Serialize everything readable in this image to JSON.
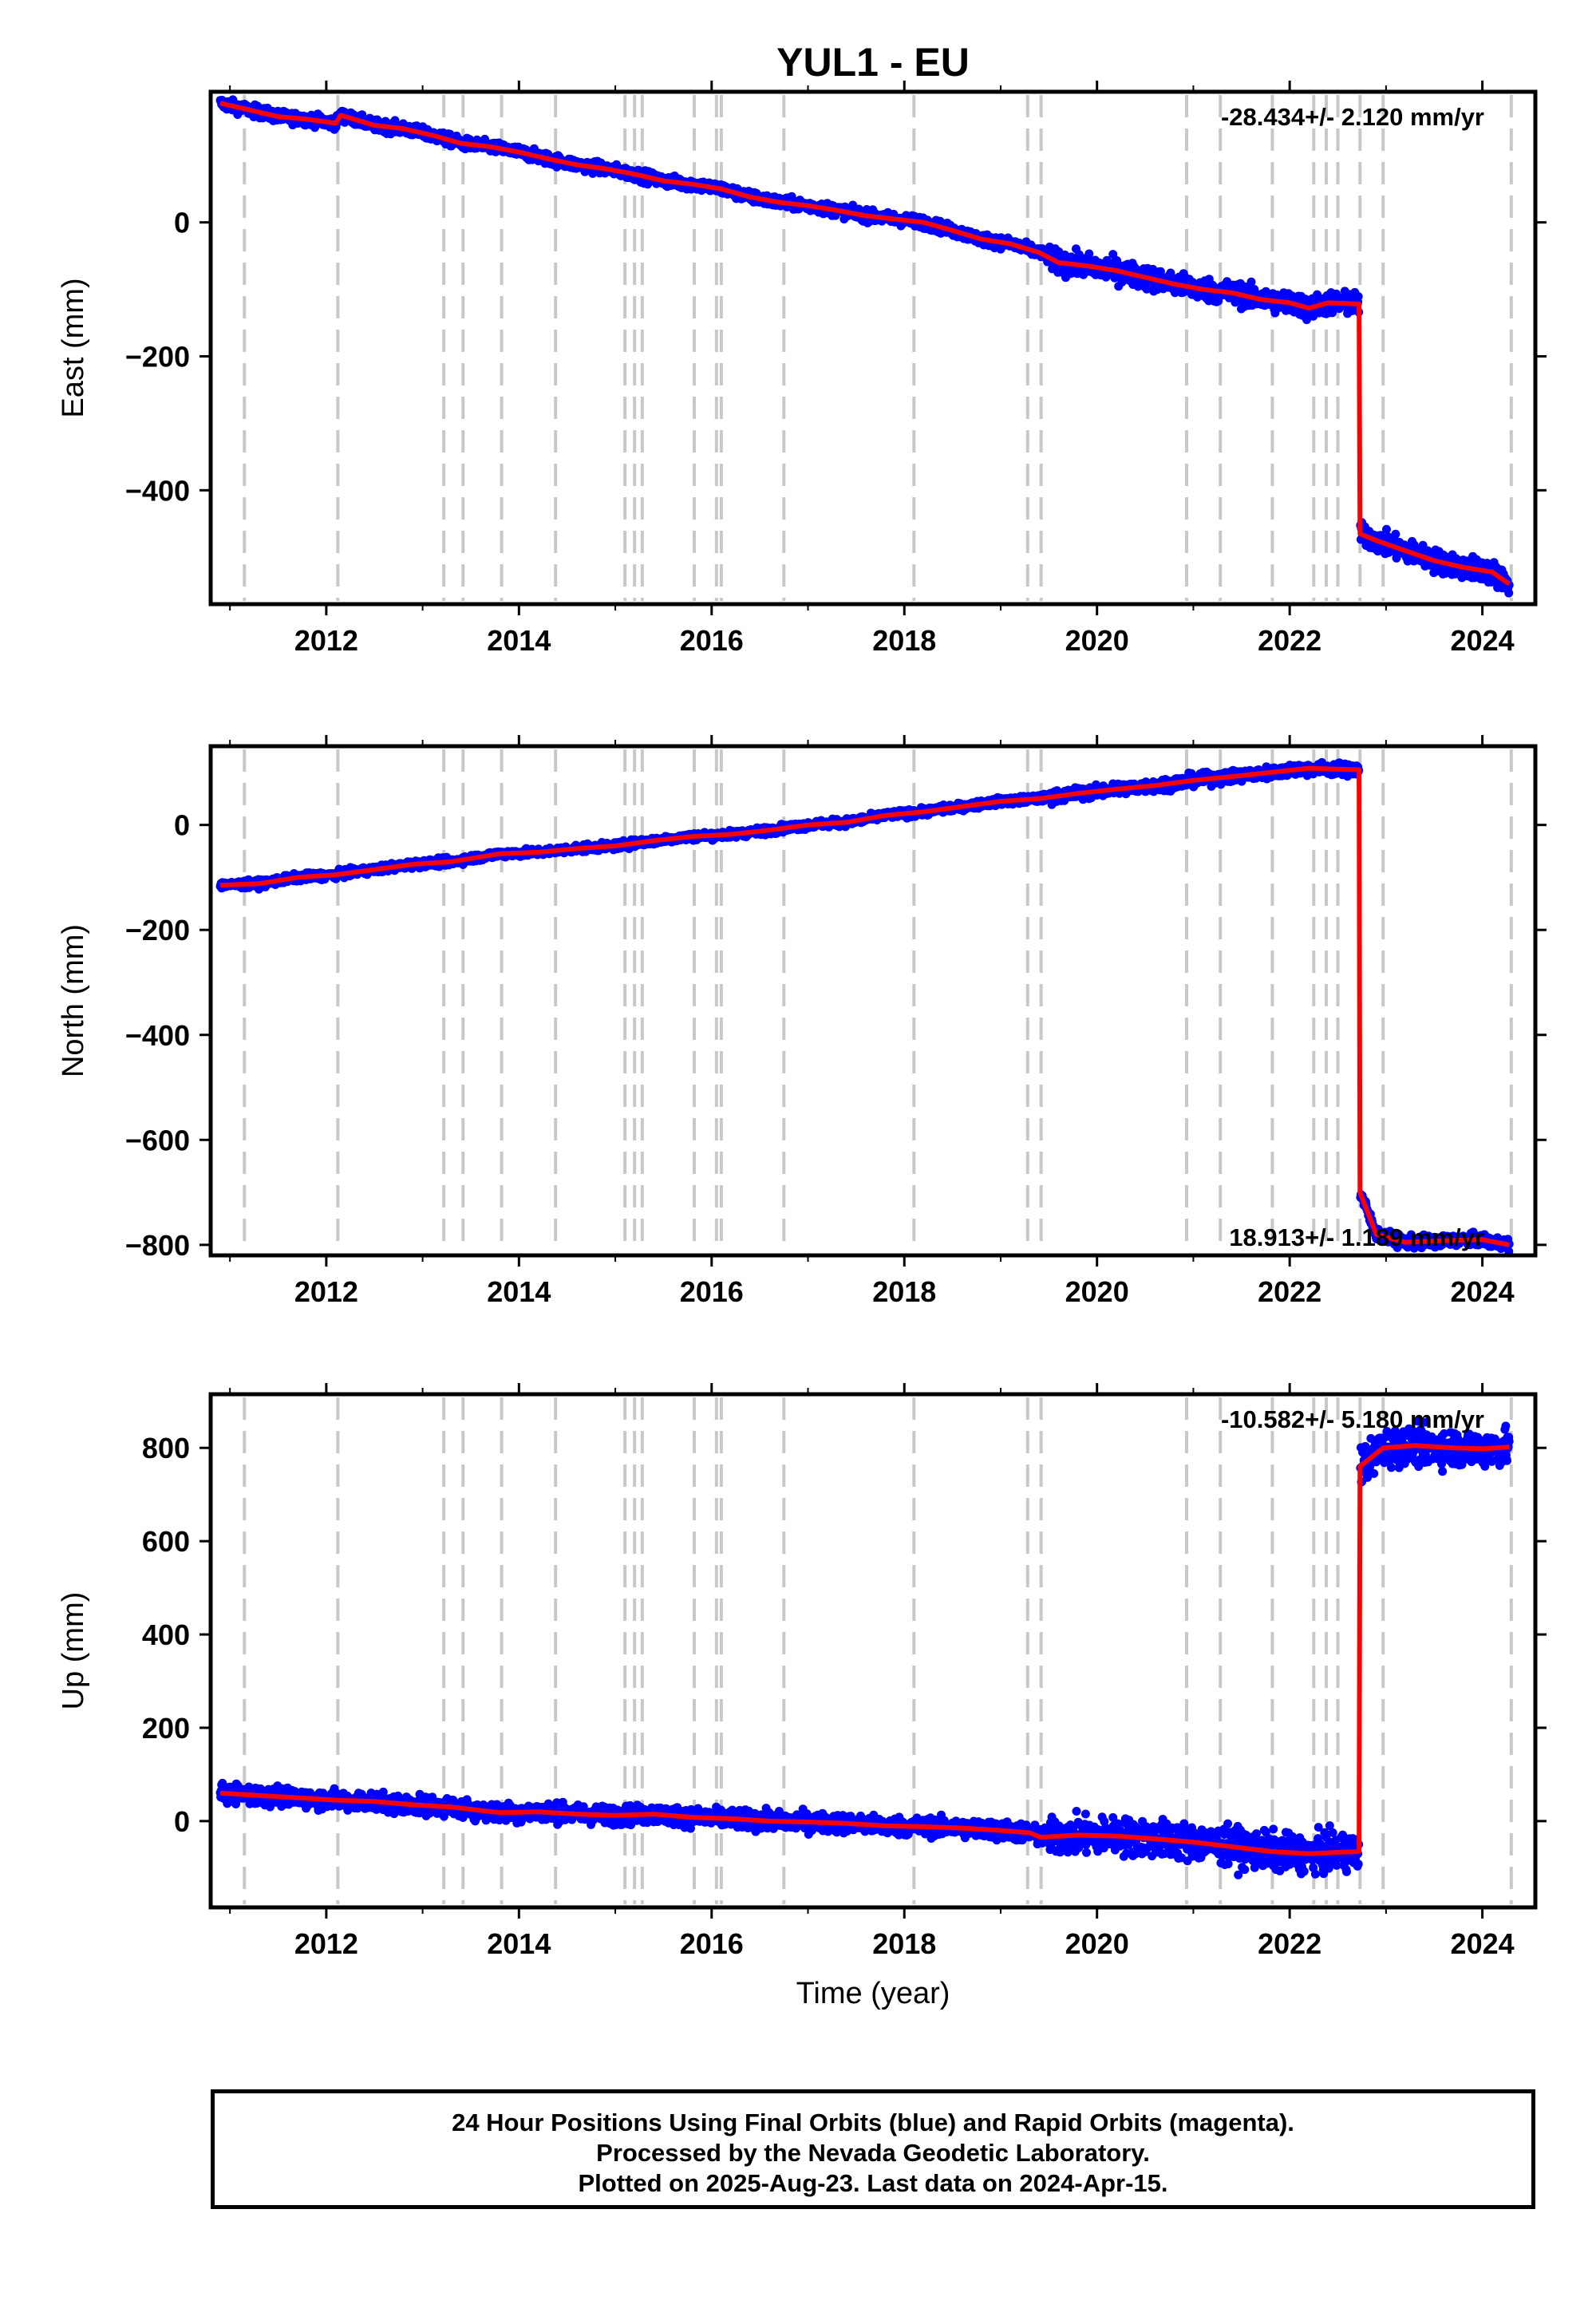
{
  "title": "YUL1 - EU",
  "colors": {
    "points": "#0000ff",
    "model": "#ff0000",
    "event_lines": "#c8c8c8",
    "frame": "#000000"
  },
  "footer": {
    "line1": "24 Hour Positions Using Final Orbits (blue) and Rapid Orbits (magenta).",
    "line2": "Processed by the Nevada Geodetic Laboratory.",
    "line3": "Plotted on 2025-Aug-23. Last data on 2024-Apr-15."
  },
  "chart_data": [
    {
      "type": "scatter",
      "panel": "east",
      "title": "YUL1 - EU",
      "xlabel": "",
      "ylabel": "East (mm)",
      "xlim": [
        2010.8,
        2024.55
      ],
      "ylim": [
        -570,
        195
      ],
      "x_ticks": [
        2012,
        2014,
        2016,
        2018,
        2020,
        2022,
        2024
      ],
      "y_ticks": [
        0,
        -200,
        -400
      ],
      "annotation": "-28.434+/- 2.120 mm/yr",
      "annotation_position": "top-right",
      "event_lines": [
        2011.15,
        2012.12,
        2013.22,
        2013.42,
        2013.82,
        2014.38,
        2015.1,
        2015.2,
        2015.28,
        2015.82,
        2016.05,
        2016.1,
        2016.75,
        2018.1,
        2019.28,
        2019.42,
        2020.93,
        2021.28,
        2021.82,
        2022.25,
        2022.38,
        2022.5,
        2022.73,
        2022.97,
        2024.3
      ],
      "series": [
        {
          "x": [
            2010.9,
            2011.2,
            2011.5,
            2011.8,
            2012.1,
            2012.15,
            2012.5,
            2012.8,
            2013.1,
            2013.4,
            2013.7,
            2014.0,
            2014.3,
            2014.6,
            2014.9,
            2015.2,
            2015.5,
            2015.8,
            2016.1,
            2016.4,
            2016.7,
            2017.0,
            2017.3,
            2017.6,
            2017.9,
            2018.2,
            2018.5,
            2018.8,
            2019.1,
            2019.4,
            2019.6,
            2019.9,
            2020.2,
            2020.5,
            2020.8,
            2021.1,
            2021.4,
            2021.7,
            2022.0,
            2022.2,
            2022.4,
            2022.72,
            2022.73,
            2022.9,
            2023.2,
            2023.5,
            2023.8,
            2024.1,
            2024.28
          ],
          "values": [
            178,
            168,
            158,
            154,
            148,
            160,
            145,
            140,
            130,
            118,
            113,
            105,
            95,
            86,
            80,
            72,
            62,
            57,
            50,
            38,
            30,
            25,
            18,
            10,
            5,
            0,
            -12,
            -25,
            -32,
            -45,
            -60,
            -65,
            -72,
            -82,
            -92,
            -100,
            -105,
            -115,
            -120,
            -128,
            -120,
            -122,
            -465,
            -475,
            -490,
            -505,
            -515,
            -522,
            -540
          ]
        }
      ]
    },
    {
      "type": "scatter",
      "panel": "north",
      "xlabel": "",
      "ylabel": "North (mm)",
      "xlim": [
        2010.8,
        2024.55
      ],
      "ylim": [
        -820,
        150
      ],
      "x_ticks": [
        2012,
        2014,
        2016,
        2018,
        2020,
        2022,
        2024
      ],
      "y_ticks": [
        0,
        -200,
        -400,
        -600,
        -800
      ],
      "annotation": "18.913+/- 1.189 mm/yr",
      "annotation_position": "bottom-right",
      "event_lines": [
        2011.15,
        2012.12,
        2013.22,
        2013.42,
        2013.82,
        2014.38,
        2015.1,
        2015.2,
        2015.28,
        2015.82,
        2016.05,
        2016.1,
        2016.75,
        2018.1,
        2019.28,
        2019.42,
        2020.93,
        2021.28,
        2021.82,
        2022.25,
        2022.38,
        2022.5,
        2022.73,
        2022.97,
        2024.3
      ],
      "series": [
        {
          "x": [
            2010.9,
            2011.3,
            2011.7,
            2012.1,
            2012.5,
            2012.9,
            2013.3,
            2013.8,
            2014.2,
            2014.6,
            2015.0,
            2015.4,
            2015.8,
            2016.2,
            2016.6,
            2017.0,
            2017.4,
            2017.8,
            2018.2,
            2018.6,
            2019.0,
            2019.4,
            2019.8,
            2020.2,
            2020.6,
            2021.0,
            2021.4,
            2021.8,
            2022.2,
            2022.72,
            2022.73,
            2022.9,
            2023.2,
            2023.6,
            2024.0,
            2024.28
          ],
          "values": [
            -115,
            -112,
            -100,
            -95,
            -85,
            -75,
            -70,
            -55,
            -52,
            -45,
            -40,
            -30,
            -22,
            -18,
            -10,
            0,
            5,
            18,
            25,
            35,
            45,
            50,
            60,
            68,
            75,
            85,
            92,
            100,
            108,
            105,
            -700,
            -780,
            -795,
            -792,
            -790,
            -800
          ]
        }
      ]
    },
    {
      "type": "scatter",
      "panel": "up",
      "xlabel": "Time (year)",
      "ylabel": "Up (mm)",
      "xlim": [
        2010.8,
        2024.55
      ],
      "ylim": [
        -185,
        915
      ],
      "x_ticks": [
        2012,
        2014,
        2016,
        2018,
        2020,
        2022,
        2024
      ],
      "y_ticks": [
        0,
        200,
        400,
        600,
        800
      ],
      "annotation": "-10.582+/- 5.180 mm/yr",
      "annotation_position": "top-right",
      "event_lines": [
        2011.15,
        2012.12,
        2013.22,
        2013.42,
        2013.82,
        2014.38,
        2015.1,
        2015.2,
        2015.28,
        2015.82,
        2016.05,
        2016.1,
        2016.75,
        2018.1,
        2019.28,
        2019.42,
        2020.93,
        2021.28,
        2021.82,
        2022.25,
        2022.38,
        2022.5,
        2022.73,
        2022.97,
        2024.3
      ],
      "series": [
        {
          "x": [
            2010.9,
            2011.3,
            2011.7,
            2012.1,
            2012.5,
            2012.9,
            2013.3,
            2013.8,
            2014.2,
            2014.6,
            2015.0,
            2015.4,
            2015.8,
            2016.2,
            2016.6,
            2017.0,
            2017.4,
            2017.8,
            2018.2,
            2018.6,
            2019.0,
            2019.3,
            2019.42,
            2019.8,
            2020.2,
            2020.6,
            2021.0,
            2021.4,
            2021.8,
            2022.2,
            2022.72,
            2022.73,
            2022.97,
            2023.3,
            2023.7,
            2024.0,
            2024.28
          ],
          "values": [
            60,
            55,
            50,
            45,
            42,
            35,
            30,
            18,
            20,
            15,
            12,
            15,
            8,
            5,
            0,
            -2,
            -5,
            -10,
            -12,
            -15,
            -20,
            -25,
            -35,
            -30,
            -32,
            -38,
            -45,
            -55,
            -65,
            -70,
            -65,
            760,
            800,
            805,
            800,
            798,
            802
          ]
        }
      ]
    }
  ]
}
